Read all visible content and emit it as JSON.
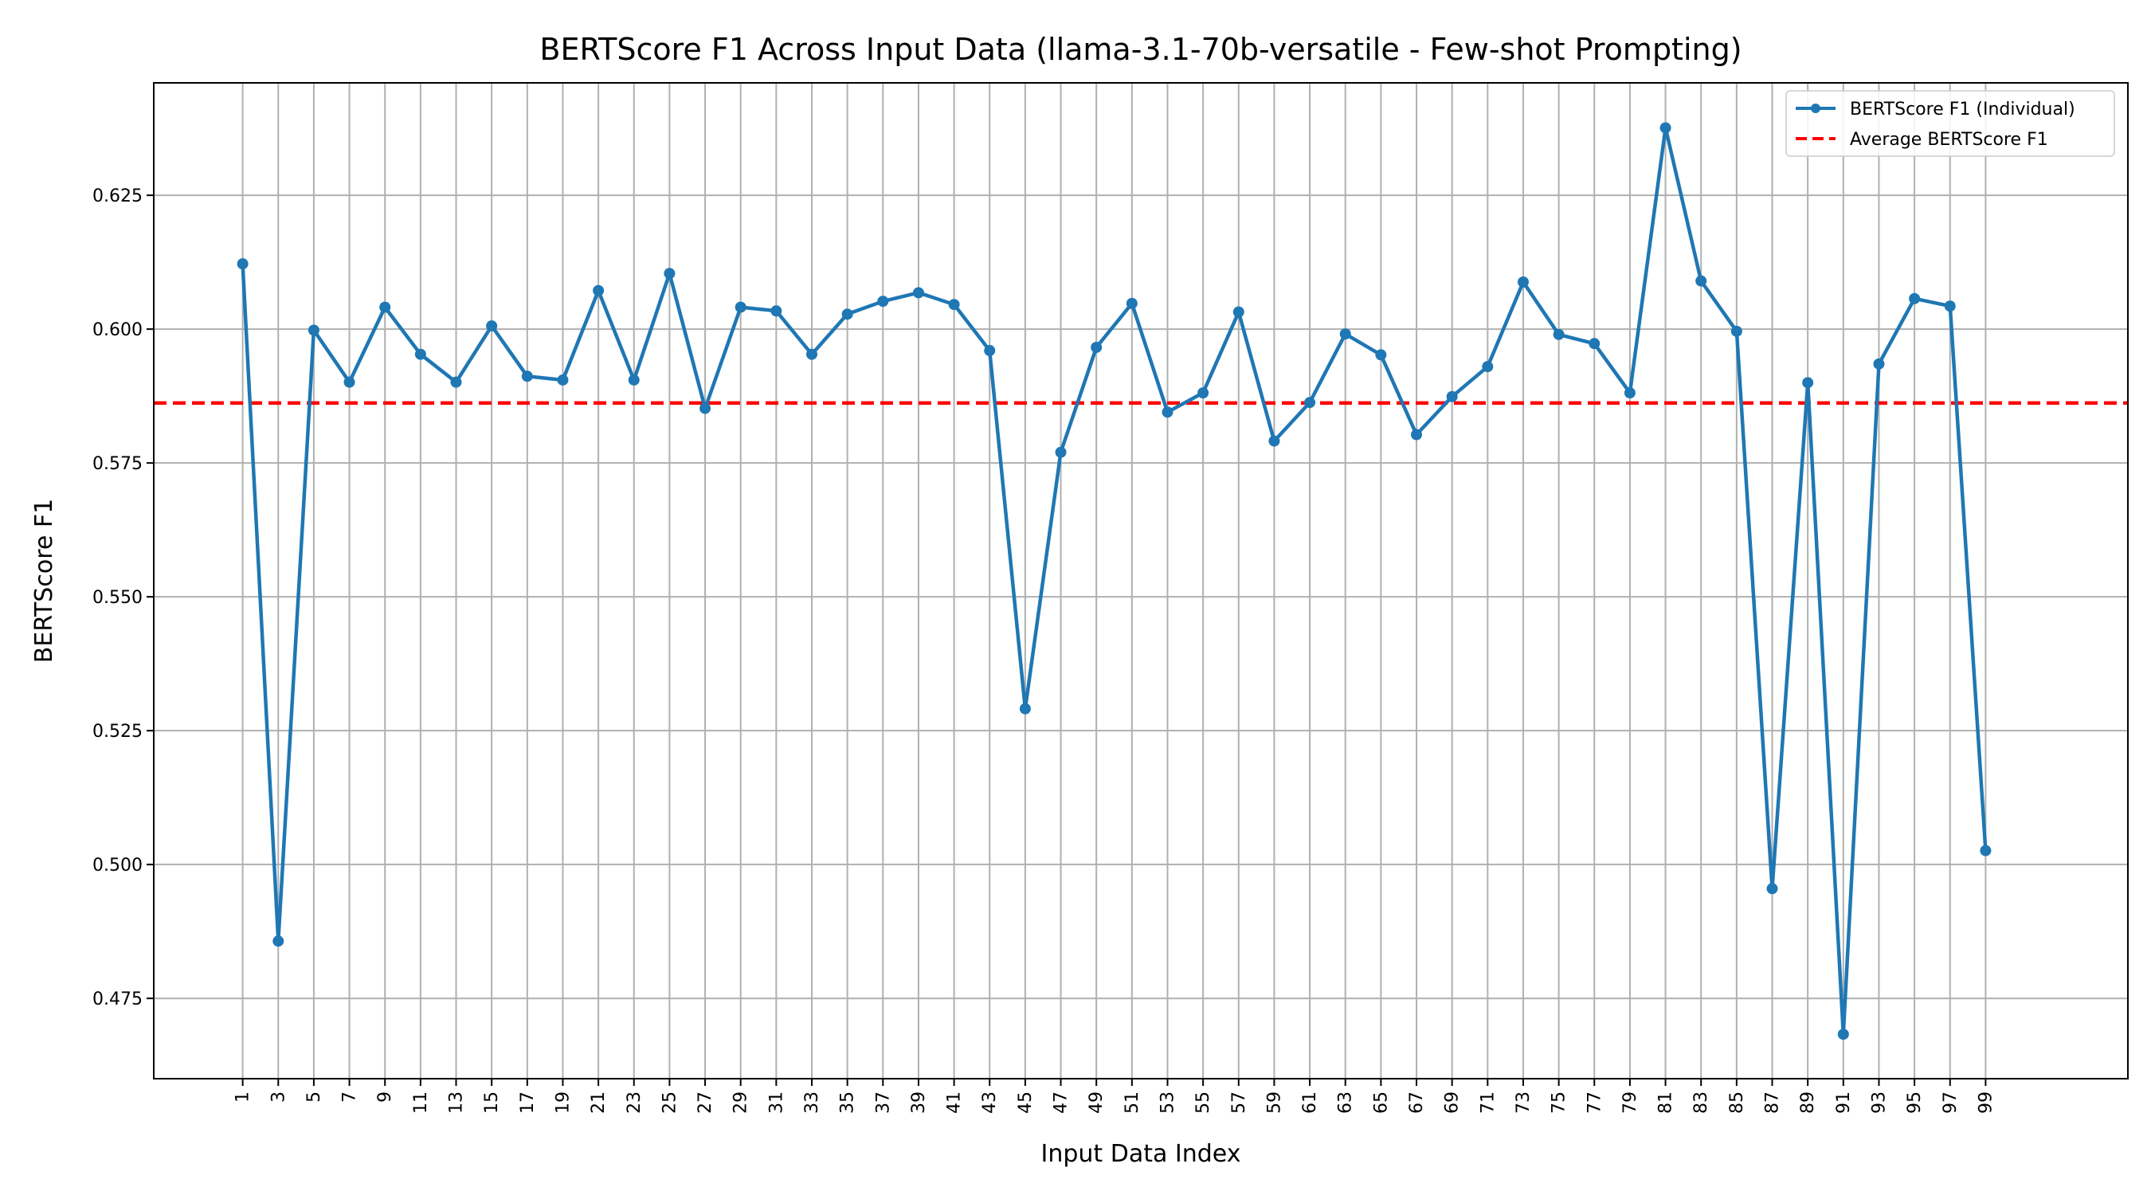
{
  "chart_data": {
    "type": "line",
    "title": "BERTScore F1 Across Input Data (llama-3.1-70b-versatile - Few-shot Prompting)",
    "xlabel": "Input Data Index",
    "ylabel": "BERTScore F1",
    "x": [
      1,
      3,
      5,
      7,
      9,
      11,
      13,
      15,
      17,
      19,
      21,
      23,
      25,
      27,
      29,
      31,
      33,
      35,
      37,
      39,
      41,
      43,
      45,
      47,
      49,
      51,
      53,
      55,
      57,
      59,
      61,
      63,
      65,
      67,
      69,
      71,
      73,
      75,
      77,
      79,
      81,
      83,
      85,
      87,
      89,
      91,
      93,
      95,
      97,
      99
    ],
    "x_ticks": [
      "1",
      "3",
      "5",
      "7",
      "9",
      "11",
      "13",
      "15",
      "17",
      "19",
      "21",
      "23",
      "25",
      "27",
      "29",
      "31",
      "33",
      "35",
      "37",
      "39",
      "41",
      "43",
      "45",
      "47",
      "49",
      "51",
      "53",
      "55",
      "57",
      "59",
      "61",
      "63",
      "65",
      "67",
      "69",
      "71",
      "73",
      "75",
      "77",
      "79",
      "81",
      "83",
      "85",
      "87",
      "89",
      "91",
      "93",
      "95",
      "97",
      "99"
    ],
    "y_ticks": [
      "0.475",
      "0.500",
      "0.525",
      "0.550",
      "0.575",
      "0.600",
      "0.625"
    ],
    "xlim": [
      -4,
      107
    ],
    "ylim": [
      0.46,
      0.646
    ],
    "grid": true,
    "legend_position": "top-right",
    "series": [
      {
        "name": "BERTScore F1 (Individual)",
        "style": "line-marker",
        "color": "#1f77b4",
        "values": [
          0.6122,
          0.4857,
          0.5998,
          0.5901,
          0.6041,
          0.5953,
          0.5901,
          0.6006,
          0.5912,
          0.5905,
          0.6072,
          0.5905,
          0.6104,
          0.5852,
          0.6041,
          0.6034,
          0.5953,
          0.6028,
          0.6052,
          0.6068,
          0.6046,
          0.596,
          0.5291,
          0.577,
          0.5966,
          0.6048,
          0.5845,
          0.5881,
          0.6032,
          0.5791,
          0.5863,
          0.5991,
          0.5952,
          0.5803,
          0.5874,
          0.593,
          0.6088,
          0.599,
          0.5973,
          0.5881,
          0.6376,
          0.609,
          0.5996,
          0.4955,
          0.59,
          0.4683,
          0.5935,
          0.6057,
          0.6043,
          0.5026
        ]
      },
      {
        "name": "Average BERTScore F1",
        "style": "dashed",
        "color": "#ff0000",
        "value": 0.5862
      }
    ]
  }
}
